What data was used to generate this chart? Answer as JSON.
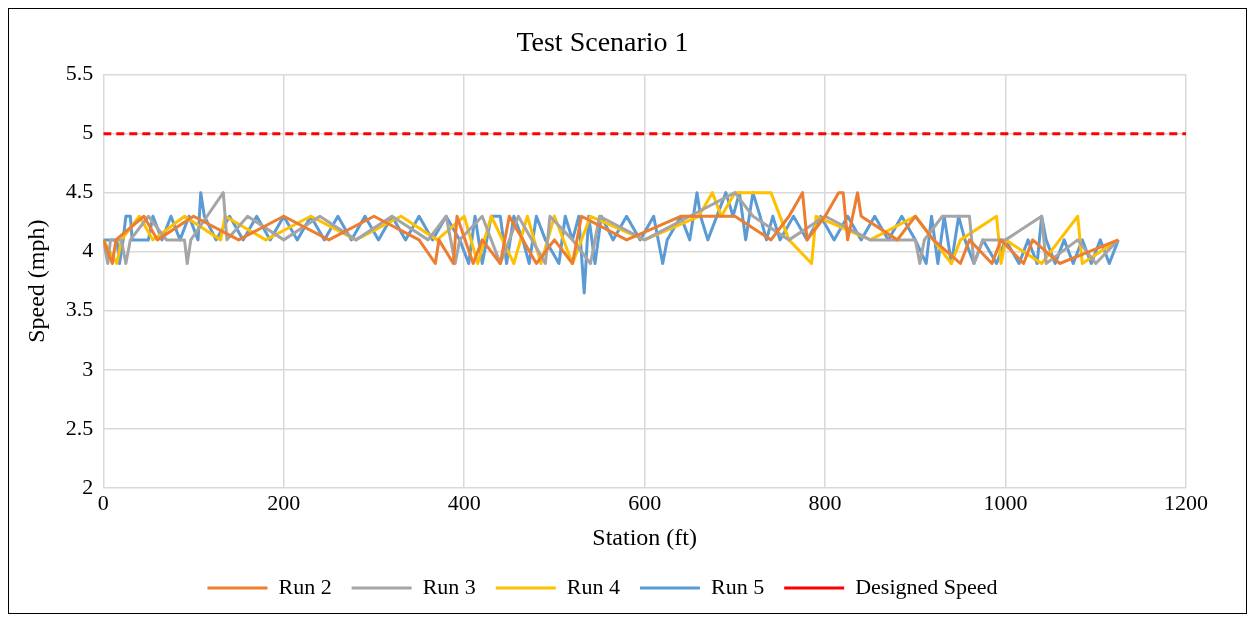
{
  "chart_data": {
    "type": "line",
    "title": "Test Scenario 1",
    "xlabel": "Station (ft)",
    "ylabel": "Speed (mph)",
    "xlim": [
      0,
      1200
    ],
    "xticks": [
      0,
      200,
      400,
      600,
      800,
      1000,
      1200
    ],
    "ylim": [
      2,
      5.5
    ],
    "yticks": [
      2,
      2.5,
      3,
      3.5,
      4,
      4.5,
      5,
      5.5
    ],
    "grid": true,
    "legend": "bottom",
    "marker": "none",
    "line_style": "solid",
    "series": [
      {
        "name": "Run 2",
        "color": "#ed7d31",
        "x": [
          0,
          10,
          14,
          45,
          60,
          100,
          150,
          200,
          250,
          300,
          350,
          368,
          372,
          388,
          392,
          410,
          420,
          440,
          450,
          480,
          500,
          520,
          530,
          580,
          640,
          700,
          740,
          760,
          775,
          780,
          800,
          815,
          820,
          825,
          836,
          840,
          880,
          900,
          920,
          950,
          960,
          985,
          995,
          1020,
          1030,
          1060,
          1125
        ],
        "values": [
          4.1,
          3.9,
          4.1,
          4.3,
          4.1,
          4.3,
          4.1,
          4.3,
          4.1,
          4.3,
          4.1,
          3.9,
          4.1,
          3.9,
          4.3,
          3.9,
          4.1,
          3.9,
          4.3,
          3.9,
          4.1,
          3.9,
          4.3,
          4.1,
          4.3,
          4.3,
          4.1,
          4.3,
          4.5,
          4.1,
          4.3,
          4.5,
          4.5,
          4.1,
          4.5,
          4.3,
          4.1,
          4.3,
          4.1,
          3.9,
          4.1,
          3.9,
          4.1,
          3.9,
          4.1,
          3.9,
          4.1
        ]
      },
      {
        "name": "Run 3",
        "color": "#a5a5a5",
        "x": [
          0,
          5,
          8,
          20,
          25,
          30,
          50,
          70,
          90,
          93,
          97,
          115,
          133,
          137,
          160,
          200,
          240,
          280,
          320,
          360,
          380,
          390,
          395,
          420,
          440,
          460,
          490,
          495,
          520,
          540,
          550,
          600,
          650,
          700,
          720,
          760,
          800,
          850,
          900,
          905,
          910,
          930,
          960,
          965,
          975,
          1000,
          1040,
          1045,
          1080,
          1100,
          1125
        ],
        "values": [
          4.1,
          3.9,
          4.1,
          4.1,
          3.9,
          4.1,
          4.3,
          4.1,
          4.1,
          3.9,
          4.1,
          4.3,
          4.5,
          4.1,
          4.3,
          4.1,
          4.3,
          4.1,
          4.3,
          4.1,
          4.3,
          3.9,
          4.1,
          4.3,
          3.9,
          4.3,
          3.9,
          4.3,
          4.1,
          3.9,
          4.3,
          4.1,
          4.3,
          4.5,
          4.3,
          4.1,
          4.3,
          4.1,
          4.1,
          3.9,
          4.1,
          4.3,
          4.3,
          3.9,
          4.1,
          4.1,
          4.3,
          3.9,
          4.1,
          3.9,
          4.1
        ]
      },
      {
        "name": "Run 4",
        "color": "#ffc000",
        "x": [
          0,
          15,
          20,
          40,
          55,
          90,
          130,
          135,
          180,
          230,
          280,
          330,
          370,
          400,
          415,
          430,
          455,
          470,
          485,
          500,
          520,
          540,
          600,
          660,
          675,
          685,
          700,
          740,
          760,
          785,
          790,
          850,
          900,
          940,
          950,
          990,
          995,
          1000,
          1040,
          1060,
          1080,
          1085,
          1125
        ],
        "values": [
          4.1,
          3.9,
          4.1,
          4.3,
          4.1,
          4.3,
          4.1,
          4.3,
          4.1,
          4.3,
          4.1,
          4.3,
          4.1,
          4.3,
          3.9,
          4.3,
          3.9,
          4.3,
          3.9,
          4.3,
          3.9,
          4.3,
          4.1,
          4.3,
          4.5,
          4.3,
          4.5,
          4.5,
          4.1,
          3.9,
          4.3,
          4.1,
          4.3,
          3.9,
          4.1,
          4.3,
          3.9,
          4.1,
          3.9,
          4.1,
          4.3,
          3.9,
          4.1
        ]
      },
      {
        "name": "Run 5",
        "color": "#5b9bd5",
        "x": [
          0,
          15,
          18,
          22,
          25,
          30,
          32,
          50,
          55,
          65,
          75,
          85,
          95,
          105,
          108,
          112,
          125,
          140,
          155,
          170,
          185,
          200,
          215,
          230,
          245,
          260,
          275,
          290,
          305,
          320,
          335,
          350,
          365,
          380,
          395,
          405,
          412,
          420,
          430,
          440,
          447,
          455,
          465,
          472,
          480,
          490,
          505,
          512,
          520,
          527,
          533,
          538,
          545,
          552,
          565,
          580,
          595,
          610,
          620,
          625,
          640,
          650,
          658,
          662,
          670,
          680,
          690,
          698,
          705,
          712,
          720,
          728,
          735,
          742,
          750,
          765,
          780,
          795,
          810,
          825,
          840,
          855,
          870,
          885,
          900,
          912,
          918,
          925,
          932,
          940,
          948,
          955,
          965,
          975,
          990,
          1000,
          1015,
          1025,
          1035,
          1040,
          1045,
          1055,
          1065,
          1075,
          1085,
          1095,
          1105,
          1115,
          1125
        ],
        "values": [
          4.1,
          4.1,
          3.9,
          4.1,
          4.3,
          4.3,
          4.1,
          4.1,
          4.3,
          4.1,
          4.3,
          4.1,
          4.3,
          4.1,
          4.5,
          4.3,
          4.1,
          4.3,
          4.1,
          4.3,
          4.1,
          4.3,
          4.1,
          4.3,
          4.1,
          4.3,
          4.1,
          4.3,
          4.1,
          4.3,
          4.1,
          4.3,
          4.1,
          4.3,
          4.1,
          3.9,
          4.3,
          3.9,
          4.3,
          4.3,
          3.9,
          4.3,
          4.1,
          3.9,
          4.3,
          4.1,
          3.9,
          4.3,
          4.1,
          4.3,
          3.65,
          4.3,
          3.9,
          4.3,
          4.1,
          4.3,
          4.1,
          4.3,
          3.9,
          4.1,
          4.3,
          4.1,
          4.5,
          4.3,
          4.1,
          4.3,
          4.5,
          4.3,
          4.5,
          4.1,
          4.5,
          4.3,
          4.1,
          4.3,
          4.1,
          4.3,
          4.1,
          4.3,
          4.1,
          4.3,
          4.1,
          4.3,
          4.1,
          4.3,
          4.1,
          3.9,
          4.3,
          3.9,
          4.3,
          3.9,
          4.3,
          4.1,
          3.9,
          4.1,
          3.9,
          4.1,
          3.9,
          4.1,
          3.9,
          4.3,
          4.1,
          3.9,
          4.1,
          3.9,
          4.1,
          3.9,
          4.1,
          3.9,
          4.1
        ]
      },
      {
        "name": "Designed Speed",
        "color": "#ff0000",
        "line_style": "dashed",
        "x": [
          0,
          1200
        ],
        "values": [
          5,
          5
        ]
      }
    ]
  }
}
